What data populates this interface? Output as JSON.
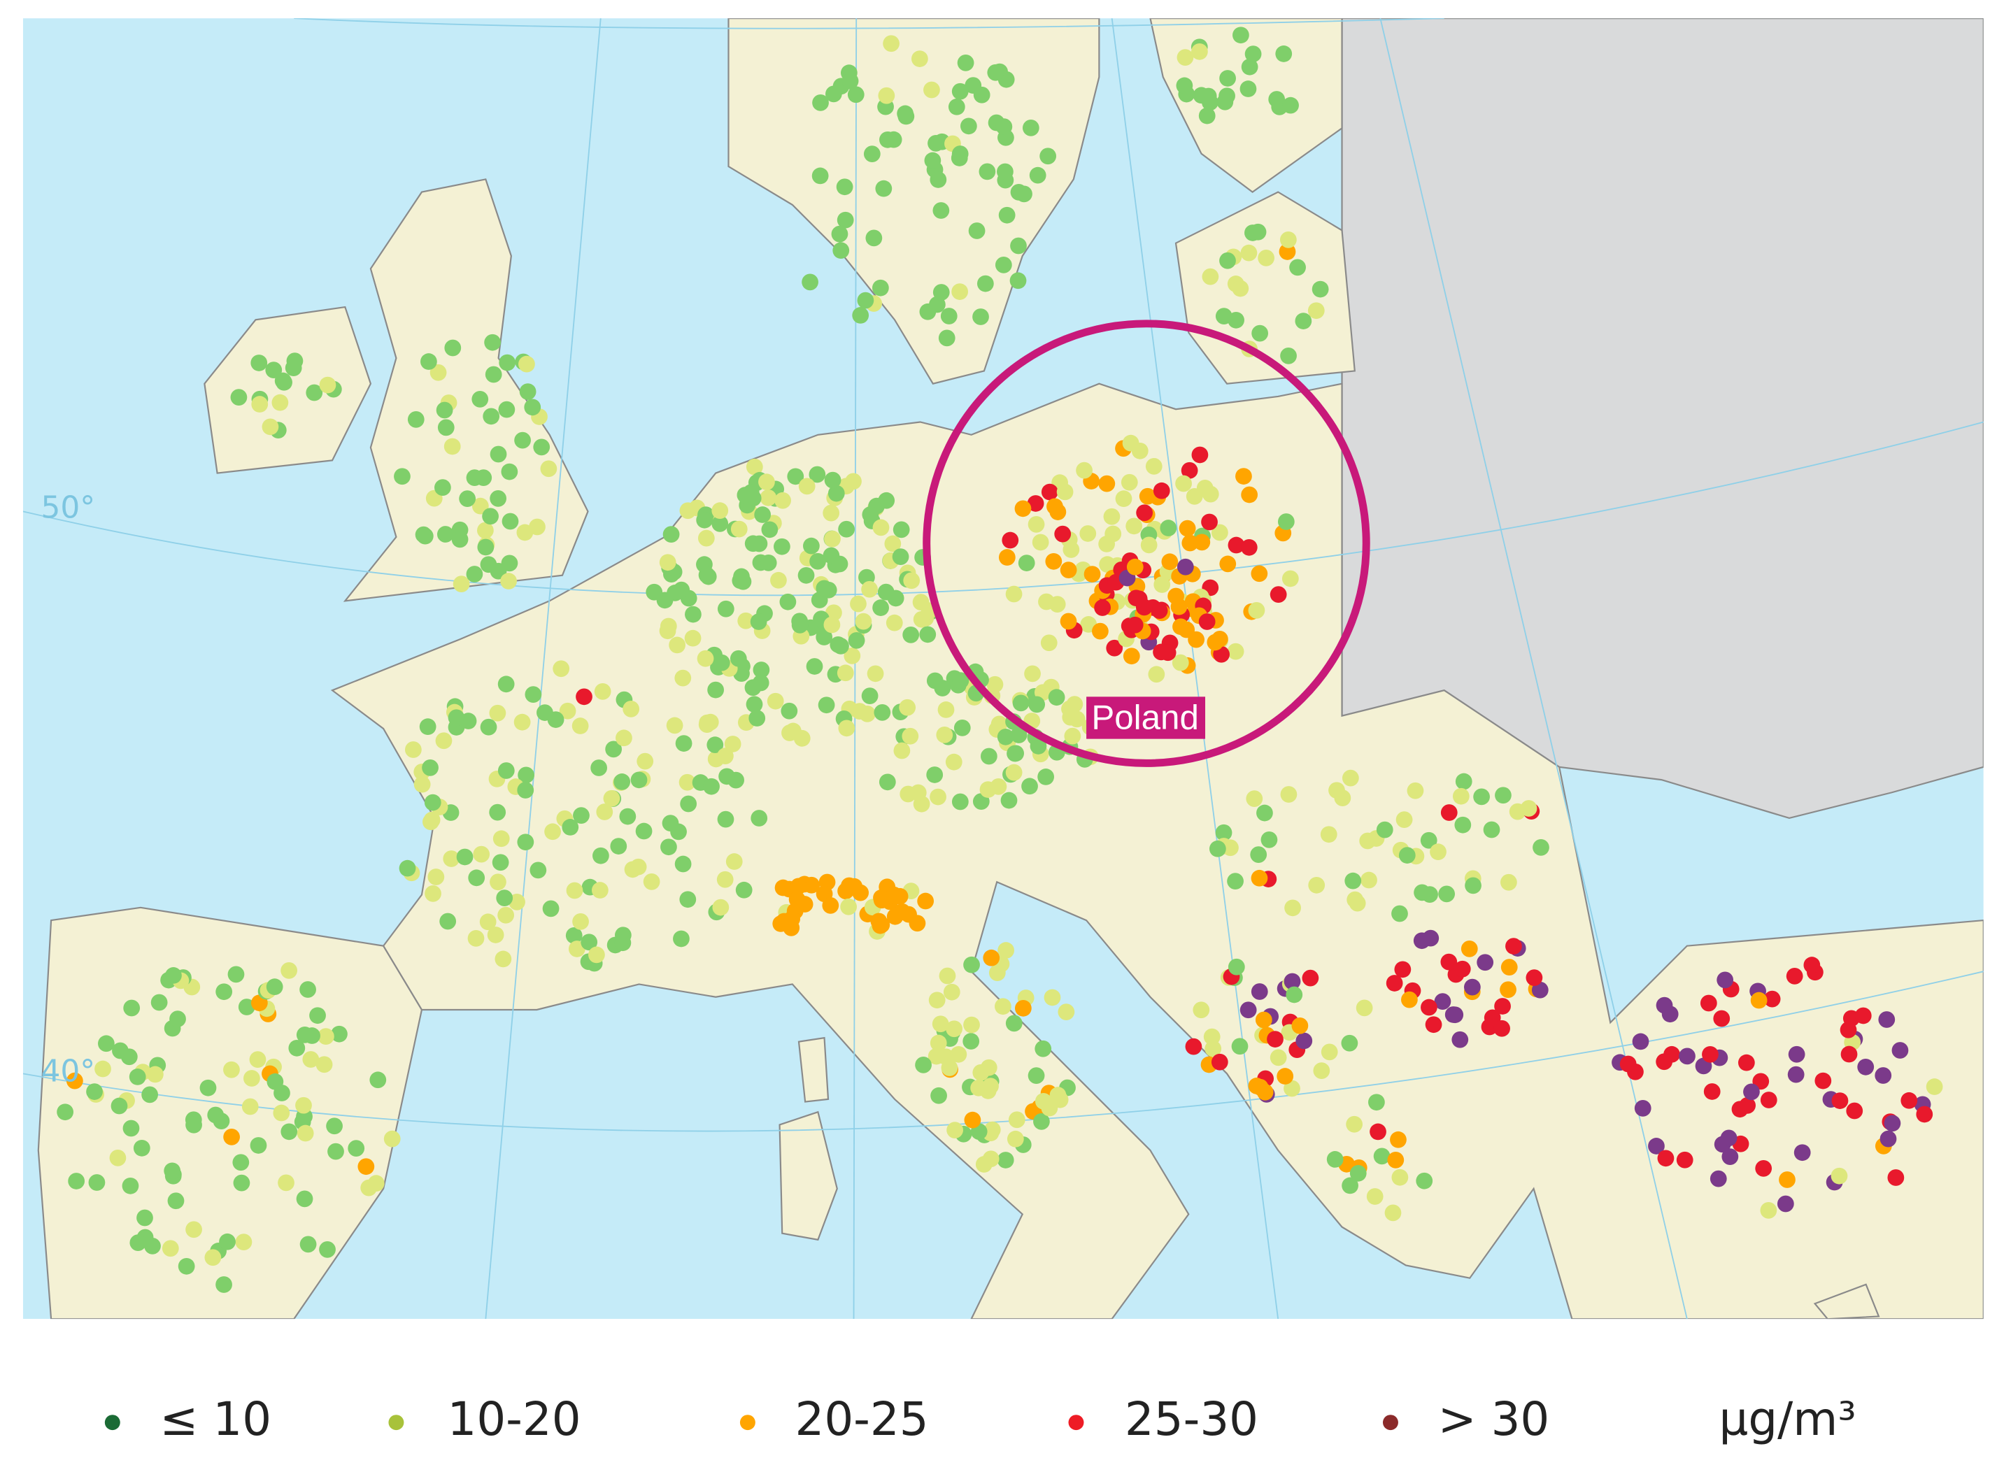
{
  "map": {
    "lat_labels": [
      "50°",
      "40°"
    ],
    "highlight_label": "Poland"
  },
  "legend": {
    "items": [
      {
        "label": "≤ 10",
        "color": "#1b6b35"
      },
      {
        "label": "10-20",
        "color": "#a8c23a"
      },
      {
        "label": "20-25",
        "color": "#ffa500"
      },
      {
        "label": "25-30",
        "color": "#ee1c25"
      },
      {
        "label": "> 30",
        "color": "#8b2a2a"
      }
    ],
    "unit": "µg/m³"
  }
}
